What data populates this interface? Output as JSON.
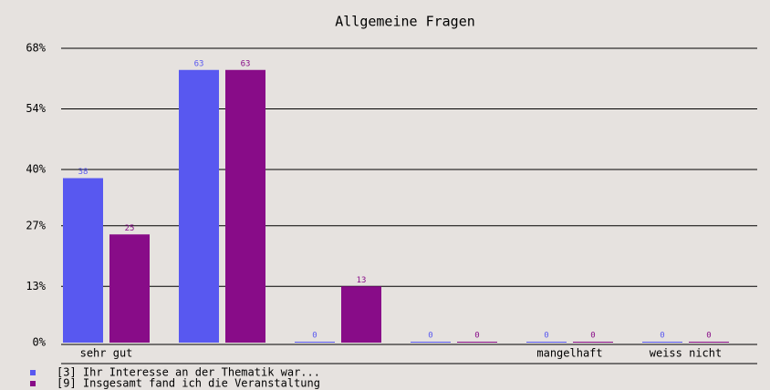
{
  "chart_data": {
    "type": "bar",
    "title": "Allgemeine Fragen",
    "categories": [
      "sehr gut",
      null,
      null,
      null,
      "mangelhaft",
      "weiss nicht"
    ],
    "series": [
      {
        "name": "[3] Ihr Interesse an der Thematik war...",
        "color": "#5858f0",
        "values": [
          38,
          63,
          0,
          0,
          0,
          0
        ]
      },
      {
        "name": "[9] Insgesamt fand ich die Veranstaltung",
        "color": "#880c88",
        "values": [
          25,
          63,
          13,
          0,
          0,
          0
        ]
      }
    ],
    "ylim": [
      0,
      68
    ],
    "yticks": [
      {
        "value": 0,
        "label": "0%"
      },
      {
        "value": 13,
        "label": "13%"
      },
      {
        "value": 27,
        "label": "27%"
      },
      {
        "value": 40,
        "label": "40%"
      },
      {
        "value": 54,
        "label": "54%"
      },
      {
        "value": 68,
        "label": "68%"
      }
    ],
    "grid": true
  }
}
